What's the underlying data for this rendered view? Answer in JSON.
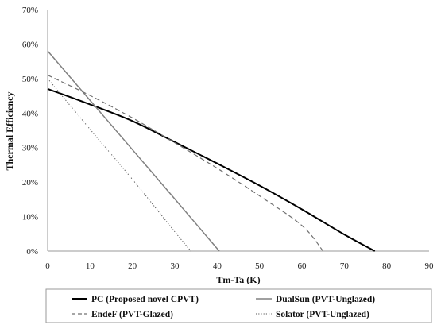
{
  "chart_data": {
    "type": "line",
    "title": "",
    "xlabel": "Tm-Ta (K)",
    "ylabel": "Thermal Efficiency",
    "xlim": [
      0,
      90
    ],
    "ylim": [
      0,
      70
    ],
    "x_ticks": [
      "0",
      "10",
      "20",
      "30",
      "40",
      "50",
      "60",
      "70",
      "80",
      "90"
    ],
    "y_ticks": [
      "0%",
      "10%",
      "20%",
      "30%",
      "40%",
      "50%",
      "60%",
      "70%"
    ],
    "grid": "none",
    "legend_position": "bottom",
    "series": [
      {
        "name": "PC (Proposed novel CPVT)",
        "color": "#000000",
        "style": "solid",
        "x": [
          0,
          10,
          20,
          30,
          40,
          50,
          60,
          70,
          77.2
        ],
        "y": [
          47,
          42.5,
          37.7,
          31.6,
          25.4,
          19.0,
          12.1,
          4.8,
          0
        ]
      },
      {
        "name": "DualSun (PVT-Unglazed)",
        "color": "#808080",
        "style": "solid",
        "x": [
          0,
          10,
          20,
          30,
          40.5
        ],
        "y": [
          58,
          43.7,
          29.4,
          15.1,
          0
        ]
      },
      {
        "name": "EndeF (PVT-Glazed)",
        "color": "#707070",
        "style": "dashed",
        "x": [
          0,
          10,
          20,
          30,
          40,
          50,
          60,
          65
        ],
        "y": [
          51,
          45.1,
          38.6,
          31.4,
          24.0,
          16.0,
          7.4,
          0
        ]
      },
      {
        "name": "Solator (PVT-Unglazed)",
        "color": "#555555",
        "style": "dotted",
        "x": [
          0,
          10,
          20,
          30,
          33.8
        ],
        "y": [
          50,
          35.3,
          20.8,
          5.6,
          0
        ]
      }
    ]
  }
}
